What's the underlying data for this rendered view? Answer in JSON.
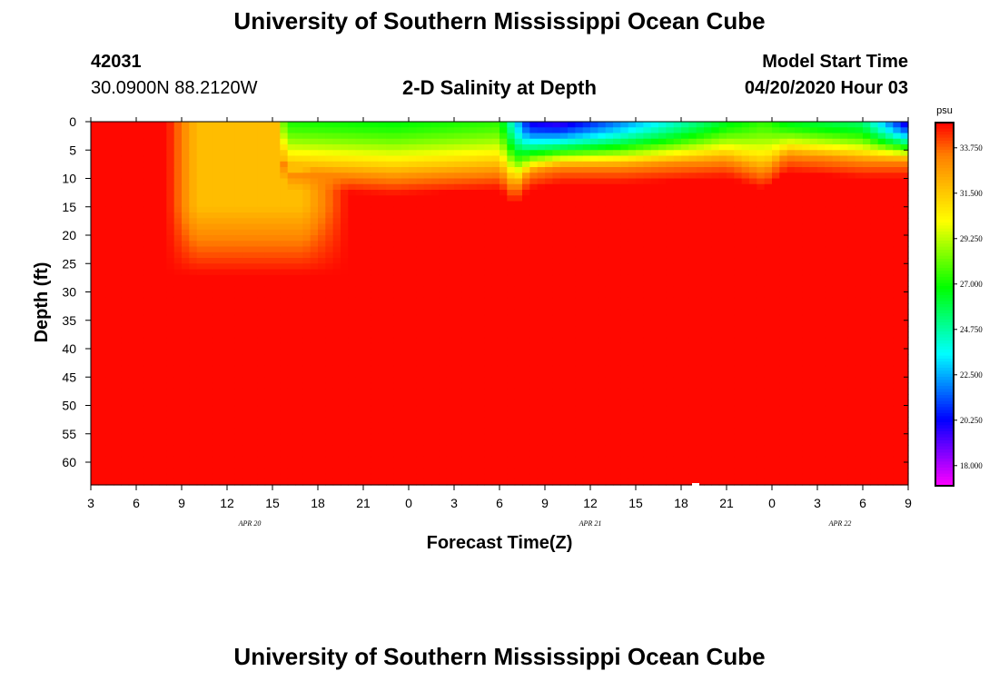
{
  "header": {
    "top_title": "University of Southern Mississippi Ocean Cube",
    "bottom_title": "University of Southern Mississippi Ocean Cube",
    "station_id": "42031",
    "station_coords": "30.0900N 88.2120W",
    "model_start_label": "Model Start Time",
    "model_start_value": "04/20/2020 Hour 03"
  },
  "chart_data": {
    "type": "heatmap",
    "title": "2-D Salinity at Depth",
    "xlabel": "Forecast Time(Z)",
    "ylabel": "Depth (ft)",
    "x_tick_labels": [
      "3",
      "6",
      "9",
      "12",
      "15",
      "18",
      "21",
      "0",
      "3",
      "6",
      "9",
      "12",
      "15",
      "18",
      "21",
      "0",
      "3",
      "6",
      "9"
    ],
    "x_range_hours": [
      0,
      54
    ],
    "date_labels": [
      {
        "label": "APR 20",
        "hour": 10.5
      },
      {
        "label": "APR 21",
        "hour": 33
      },
      {
        "label": "APR 22",
        "hour": 49.5
      }
    ],
    "y_ticks": [
      0,
      5,
      10,
      15,
      20,
      25,
      30,
      35,
      40,
      45,
      50,
      55,
      60
    ],
    "ylim": [
      0,
      64
    ],
    "colorbar": {
      "units": "psu",
      "ticks": [
        "18.000",
        "20.250",
        "22.500",
        "24.750",
        "27.000",
        "29.250",
        "31.500",
        "33.750"
      ],
      "range": [
        17.0,
        35.0
      ]
    },
    "deep_salinity_psu": 34.9,
    "fresh_plume_psu": 31.8,
    "surface_profile": [
      {
        "hour": 0,
        "surface": 34.9,
        "thickness_ft": 0
      },
      {
        "hour": 6,
        "surface": 34.8,
        "thickness_ft": 0
      },
      {
        "hour": 8,
        "surface": 33.6,
        "thickness_ft": 0
      },
      {
        "hour": 12.5,
        "surface": 33.4,
        "thickness_ft": 0
      },
      {
        "hour": 12.8,
        "surface": 27.2,
        "thickness_ft": 9
      },
      {
        "hour": 20,
        "surface": 26.8,
        "thickness_ft": 10
      },
      {
        "hour": 27,
        "surface": 27.4,
        "thickness_ft": 9
      },
      {
        "hour": 28,
        "surface": 23.5,
        "thickness_ft": 12
      },
      {
        "hour": 29,
        "surface": 20.0,
        "thickness_ft": 9
      },
      {
        "hour": 31,
        "surface": 19.5,
        "thickness_ft": 8
      },
      {
        "hour": 35,
        "surface": 22.0,
        "thickness_ft": 8
      },
      {
        "hour": 42,
        "surface": 26.5,
        "thickness_ft": 7
      },
      {
        "hour": 44.5,
        "surface": 27.5,
        "thickness_ft": 9
      },
      {
        "hour": 46,
        "surface": 26.5,
        "thickness_ft": 6
      },
      {
        "hour": 51,
        "surface": 25.5,
        "thickness_ft": 7
      },
      {
        "hour": 54,
        "surface": 19.5,
        "thickness_ft": 7
      }
    ]
  },
  "colors": {
    "background": "#ffffff",
    "ramp": [
      "#ff00ff",
      "#8000ff",
      "#0000ff",
      "#0080ff",
      "#00ffff",
      "#00ff80",
      "#00ff00",
      "#80ff00",
      "#ffff00",
      "#ffc000",
      "#ff8000",
      "#ff0000"
    ]
  }
}
